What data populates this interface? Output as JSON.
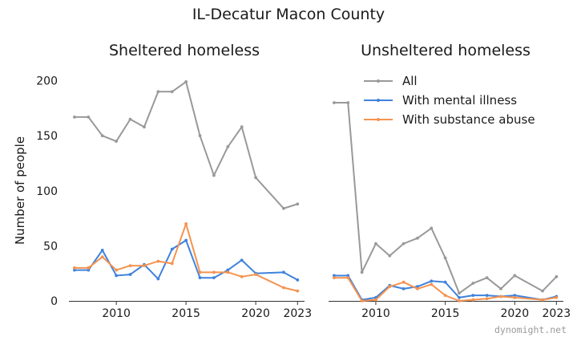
{
  "suptitle": "IL-Decatur Macon County",
  "watermark": "dynomight.net",
  "colors": {
    "all": "#999999",
    "mental": "#3f82dc",
    "substance": "#f5934f",
    "axis": "#333333"
  },
  "legend": {
    "placement": "top-right of right panel"
  },
  "chart_data": [
    {
      "type": "line",
      "title": "Sheltered homeless",
      "ylabel": "Number of people",
      "xlabel": "",
      "ylim": [
        0,
        215
      ],
      "xlim": [
        2006.6,
        2023.5
      ],
      "yticks": [
        0,
        50,
        100,
        150,
        200
      ],
      "xticks": [
        2010,
        2015,
        2020,
        2023
      ],
      "grid": false,
      "x": [
        2007,
        2008,
        2009,
        2010,
        2011,
        2012,
        2013,
        2014,
        2015,
        2016,
        2017,
        2018,
        2019,
        2020,
        2022,
        2023
      ],
      "series": [
        {
          "name": "All",
          "key": "all",
          "values": [
            167,
            167,
            150,
            145,
            165,
            158,
            190,
            190,
            199,
            150,
            114,
            140,
            158,
            112,
            84,
            88
          ]
        },
        {
          "name": "With mental illness",
          "key": "mental",
          "values": [
            28,
            28,
            46,
            23,
            24,
            33,
            20,
            47,
            55,
            21,
            21,
            28,
            37,
            25,
            26,
            19
          ]
        },
        {
          "name": "With substance abuse",
          "key": "substance",
          "values": [
            30,
            30,
            40,
            28,
            32,
            32,
            36,
            34,
            70,
            26,
            26,
            26,
            22,
            24,
            12,
            9
          ]
        }
      ]
    },
    {
      "type": "line",
      "title": "Unsheltered homeless",
      "ylabel": "",
      "xlabel": "",
      "ylim": [
        0,
        215
      ],
      "xlim": [
        2006.6,
        2023.5
      ],
      "yticks": [],
      "xticks": [
        2010,
        2015,
        2020,
        2023
      ],
      "grid": false,
      "x": [
        2007,
        2008,
        2009,
        2010,
        2011,
        2012,
        2013,
        2014,
        2015,
        2016,
        2017,
        2018,
        2019,
        2020,
        2022,
        2023
      ],
      "series": [
        {
          "name": "All",
          "key": "all",
          "values": [
            180,
            180,
            26,
            52,
            41,
            52,
            57,
            66,
            39,
            7,
            16,
            21,
            11,
            23,
            9,
            22
          ]
        },
        {
          "name": "With mental illness",
          "key": "mental",
          "values": [
            23,
            23,
            1,
            3,
            14,
            11,
            13,
            18,
            17,
            3,
            5,
            5,
            4,
            5,
            1,
            4
          ]
        },
        {
          "name": "With substance abuse",
          "key": "substance",
          "values": [
            21,
            21,
            0,
            1,
            13,
            17,
            11,
            15,
            5,
            0,
            1,
            2,
            4,
            3,
            1,
            3
          ]
        }
      ]
    }
  ]
}
